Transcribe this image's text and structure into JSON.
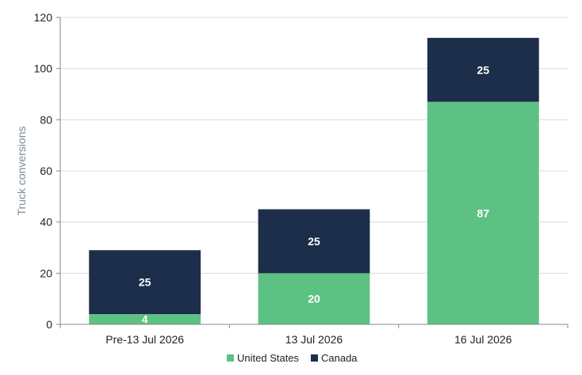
{
  "chart_data": {
    "type": "bar",
    "stacked": true,
    "categories": [
      "Pre-13 Jul 2026",
      "13 Jul 2026",
      "16 Jul 2026"
    ],
    "series": [
      {
        "name": "United States",
        "values": [
          4,
          20,
          87
        ],
        "color": "#5dc184"
      },
      {
        "name": "Canada",
        "values": [
          25,
          25,
          25
        ],
        "color": "#1c2e4a"
      }
    ],
    "xlabel": "",
    "ylabel": "Truck conversions",
    "ylim": [
      0,
      120
    ],
    "yticks": [
      0,
      20,
      40,
      60,
      80,
      100,
      120
    ],
    "grid": true,
    "legend": "bottom-center",
    "data_labels": true
  }
}
